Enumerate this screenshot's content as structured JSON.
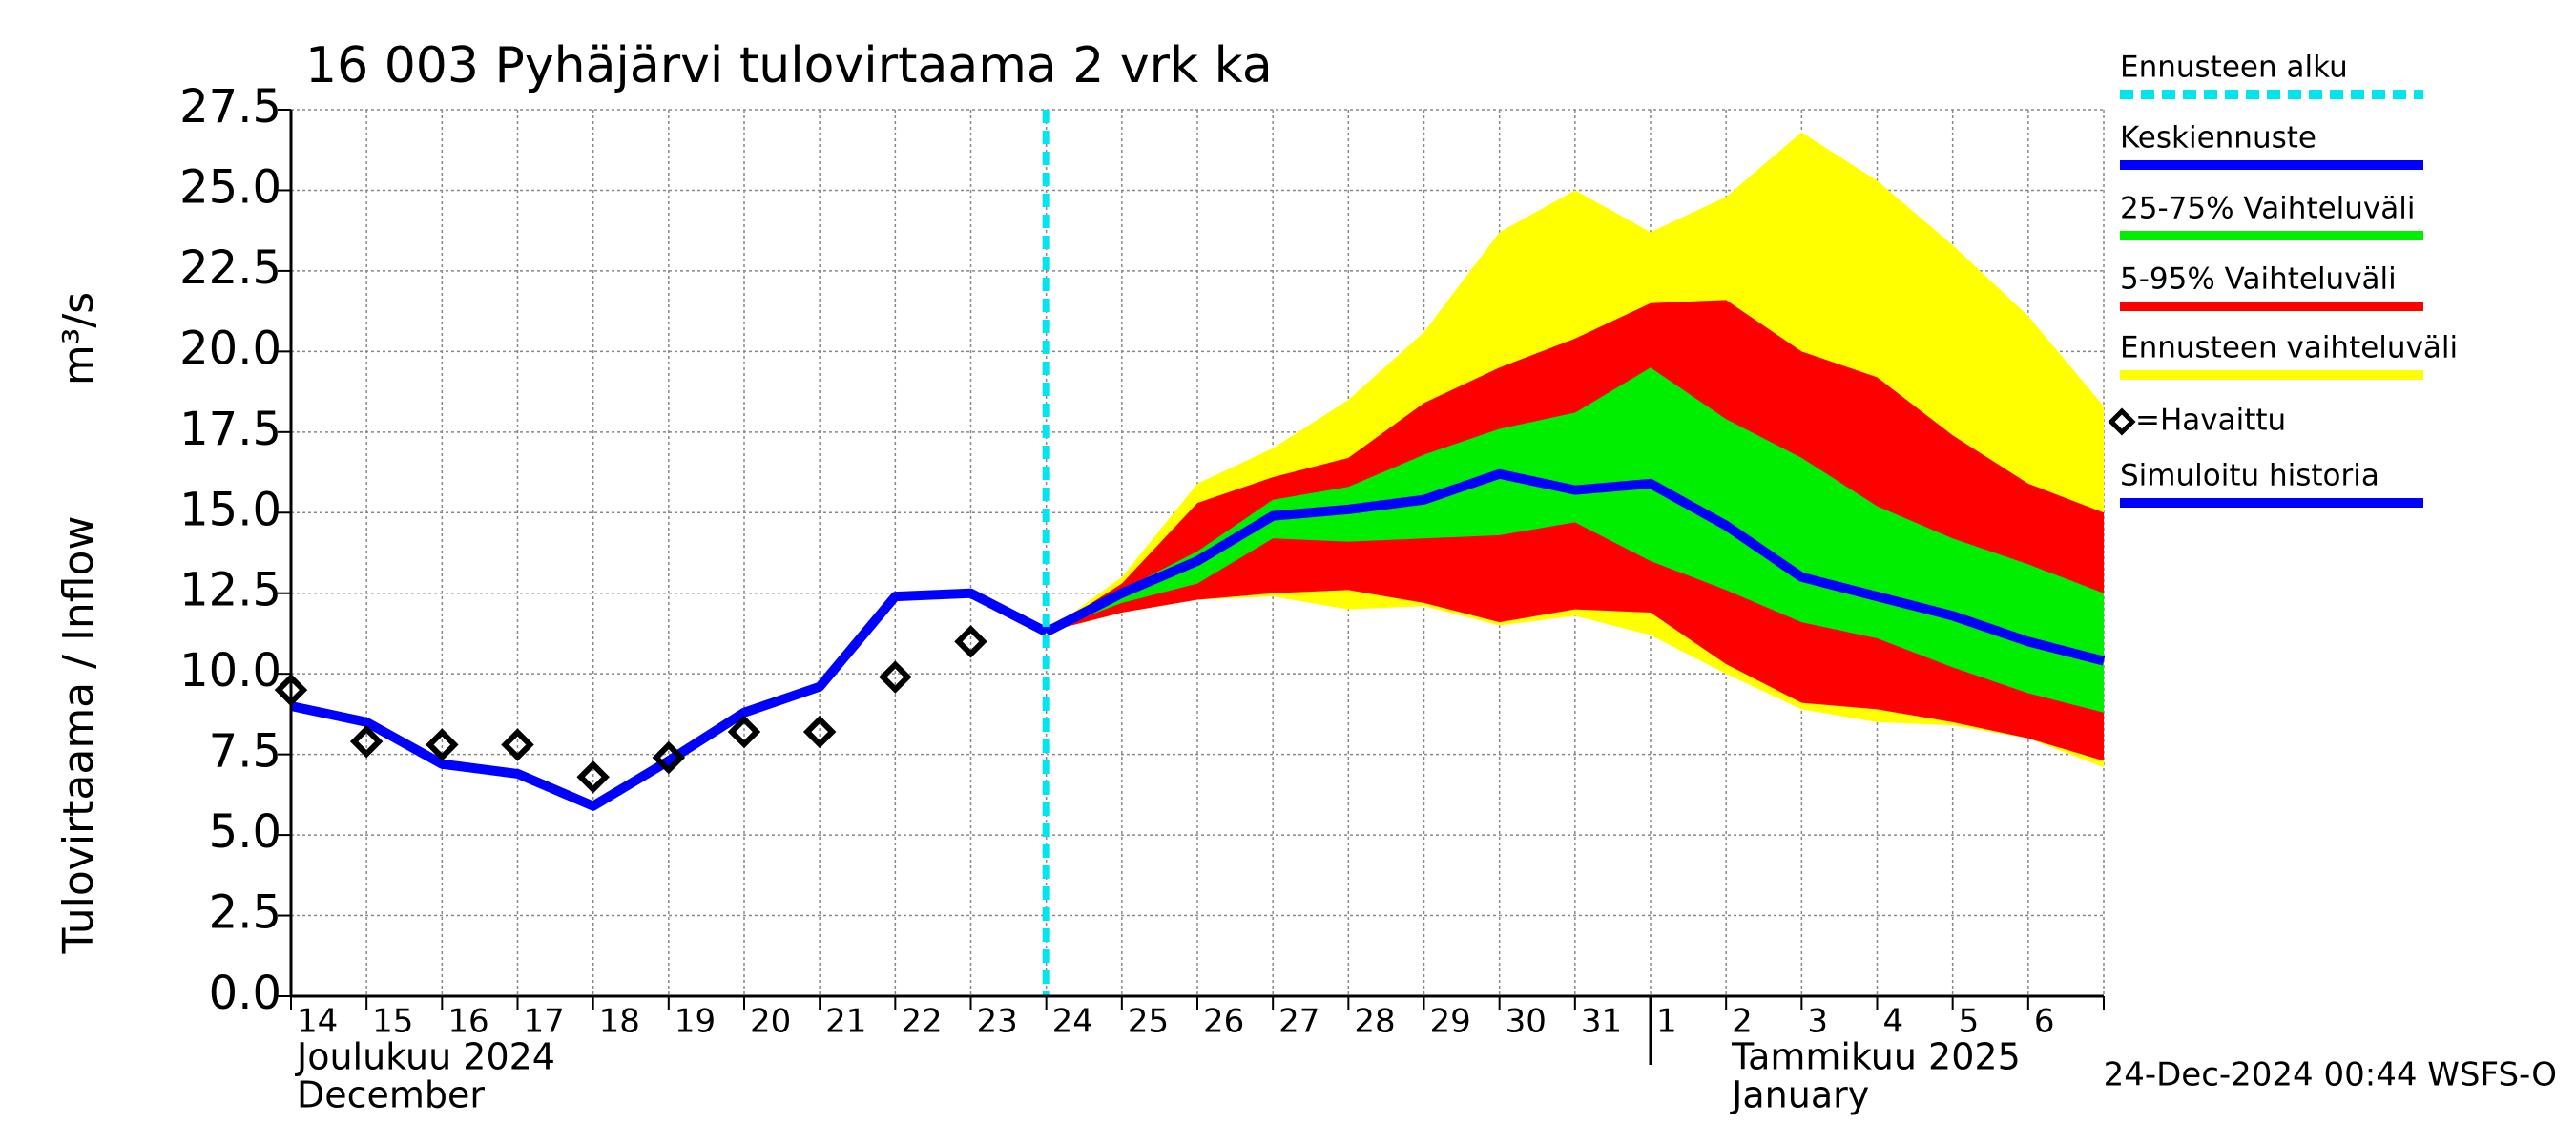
{
  "chart_data": {
    "type": "forecast",
    "title": "16 003 Pyhäjärvi tulovirtaama 2 vrk ka",
    "y_label": "Tulovirtaama / Inflow",
    "y_unit": "m³/s",
    "footer": "24-Dec-2024 00:44 WSFS-O",
    "months": [
      {
        "label": "Joulukuu  2024",
        "label_en": "December"
      },
      {
        "label": "Tammikuu  2025",
        "label_en": "January"
      }
    ],
    "categories": [
      "14",
      "15",
      "16",
      "17",
      "18",
      "19",
      "20",
      "21",
      "22",
      "23",
      "24",
      "25",
      "26",
      "27",
      "28",
      "29",
      "30",
      "31",
      "1",
      "2",
      "3",
      "4",
      "5",
      "6",
      null
    ],
    "ylim": [
      0,
      27.5
    ],
    "yticks": [
      {
        "value": 0,
        "label": "0.0"
      },
      2.5,
      {
        "value": 5,
        "label": "5.0"
      },
      7.5,
      {
        "value": 10,
        "label": "10.0"
      },
      12.5,
      {
        "value": 15,
        "label": "15.0"
      },
      17.5,
      {
        "value": 20,
        "label": "20.0"
      },
      22.5,
      {
        "value": 25,
        "label": "25.0"
      },
      27.5
    ],
    "grid": true,
    "forecast_start": {
      "name": "Ennusteen alku",
      "color": "#00e5ee",
      "x_index": 10
    },
    "series": [
      {
        "name": "Keskiennuste",
        "kind": "line",
        "color": "#0000ff",
        "values": [
          null,
          null,
          null,
          null,
          null,
          null,
          null,
          null,
          null,
          null,
          11.3,
          12.5,
          13.5,
          14.9,
          15.1,
          15.4,
          16.2,
          15.7,
          15.9,
          14.6,
          13.0,
          12.4,
          11.8,
          11.0,
          10.4
        ]
      },
      {
        "name": "25-75% Vaihteluväli",
        "kind": "band",
        "color": "#00ee00",
        "upper": [
          null,
          null,
          null,
          null,
          null,
          null,
          null,
          null,
          null,
          null,
          11.3,
          12.6,
          13.8,
          15.4,
          15.8,
          16.8,
          17.6,
          18.1,
          19.5,
          17.9,
          16.7,
          15.2,
          14.2,
          13.4,
          12.5
        ],
        "lower": [
          null,
          null,
          null,
          null,
          null,
          null,
          null,
          null,
          null,
          null,
          11.3,
          12.2,
          12.8,
          14.2,
          14.1,
          14.2,
          14.3,
          14.7,
          13.5,
          12.6,
          11.6,
          11.1,
          10.2,
          9.4,
          8.8
        ]
      },
      {
        "name": "5-95% Vaihteluväli",
        "kind": "band",
        "color": "#ff0000",
        "upper": [
          null,
          null,
          null,
          null,
          null,
          null,
          null,
          null,
          null,
          null,
          11.3,
          12.8,
          15.3,
          16.1,
          16.7,
          18.4,
          19.5,
          20.4,
          21.5,
          21.6,
          20.0,
          19.2,
          17.4,
          15.9,
          15.0
        ],
        "lower": [
          null,
          null,
          null,
          null,
          null,
          null,
          null,
          null,
          null,
          null,
          11.3,
          11.9,
          12.3,
          12.5,
          12.6,
          12.2,
          11.6,
          12.0,
          11.9,
          10.3,
          9.1,
          8.9,
          8.5,
          8.0,
          7.3
        ]
      },
      {
        "name": "Ennusteen vaihteluväli",
        "kind": "band",
        "color": "#ffff00",
        "upper": [
          null,
          null,
          null,
          null,
          null,
          null,
          null,
          null,
          null,
          null,
          11.3,
          13.0,
          15.9,
          17.0,
          18.5,
          20.6,
          23.7,
          25.0,
          23.7,
          24.8,
          26.8,
          25.3,
          23.3,
          21.1,
          18.3
        ],
        "lower": [
          null,
          null,
          null,
          null,
          null,
          null,
          null,
          null,
          null,
          null,
          11.3,
          11.9,
          12.3,
          12.4,
          12.0,
          12.1,
          11.5,
          11.8,
          11.2,
          10.0,
          8.9,
          8.5,
          8.4,
          8.0,
          7.1
        ]
      },
      {
        "name": "=Havaittu",
        "kind": "scatter",
        "color": "#000000",
        "values": [
          9.5,
          7.9,
          7.8,
          7.8,
          6.8,
          7.4,
          8.2,
          8.2,
          9.9,
          11.0,
          null,
          null,
          null,
          null,
          null,
          null,
          null,
          null,
          null,
          null,
          null,
          null,
          null,
          null,
          null
        ]
      },
      {
        "name": "Simuloitu historia",
        "kind": "line",
        "color": "#0000ff",
        "values": [
          9.0,
          8.5,
          7.2,
          6.9,
          5.9,
          7.3,
          8.8,
          9.6,
          12.4,
          12.5,
          11.3,
          null,
          null,
          null,
          null,
          null,
          null,
          null,
          null,
          null,
          null,
          null,
          null,
          null,
          null
        ]
      }
    ]
  }
}
